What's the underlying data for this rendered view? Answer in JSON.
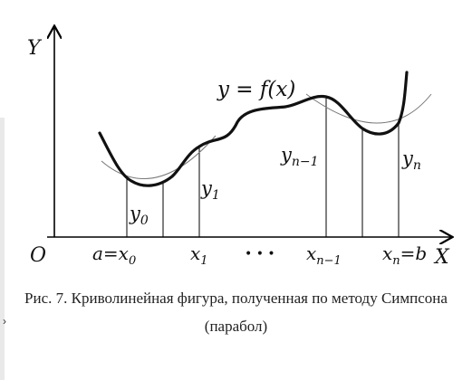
{
  "figure": {
    "axes": {
      "y_label": "Y",
      "x_label": "X",
      "origin_label": "O"
    },
    "function_label": "y = f(x)",
    "ordinates": [
      {
        "name": "y",
        "sub": "0"
      },
      {
        "name": "y",
        "sub": "1"
      },
      {
        "name": "y",
        "sub": "n−1"
      },
      {
        "name": "y",
        "sub": "n"
      }
    ],
    "ticks": {
      "x0": {
        "pre": "a=x",
        "sub": "0"
      },
      "x1": {
        "pre": "x",
        "sub": "1"
      },
      "dots": "• • •",
      "xn1": {
        "pre": "x",
        "sub": "n−1"
      },
      "xn": {
        "pre": "x",
        "sub": "n",
        "post": "=b"
      }
    },
    "colors": {
      "curve": "#111111",
      "parabola": "#777777",
      "axes": "#000000"
    }
  },
  "caption": {
    "line1": "Рис. 7. Криволинейная фигура, полученная по методу Симпсона",
    "line2": "(парабол)"
  },
  "side_mark": "›"
}
